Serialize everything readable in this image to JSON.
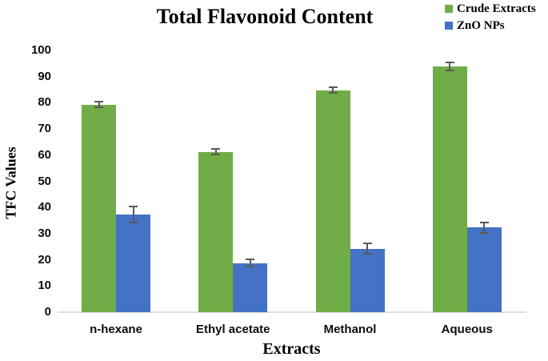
{
  "chart_data": {
    "type": "bar",
    "title": "Total Flavonoid Content",
    "xlabel": "Extracts",
    "ylabel": "TFC Values",
    "categories": [
      "n-hexane",
      "Ethyl acetate",
      "Methanol",
      "Aqueous"
    ],
    "series": [
      {
        "name": "Crude Extracts",
        "color": "#70AD47",
        "values": [
          79,
          61,
          84.5,
          93.5
        ],
        "errors": [
          1,
          1,
          1,
          1.5
        ]
      },
      {
        "name": "ZnO NPs",
        "color": "#4472C4",
        "values": [
          37,
          18.5,
          24,
          32
        ],
        "errors": [
          3,
          1.5,
          2,
          2
        ]
      }
    ],
    "ylim": [
      0,
      100
    ],
    "ytick_step": 10,
    "grid": false,
    "legend_position": "top-right",
    "error_bar_color": "#595959",
    "baseline_color": "#dedede",
    "background_color": "#ffffff"
  }
}
